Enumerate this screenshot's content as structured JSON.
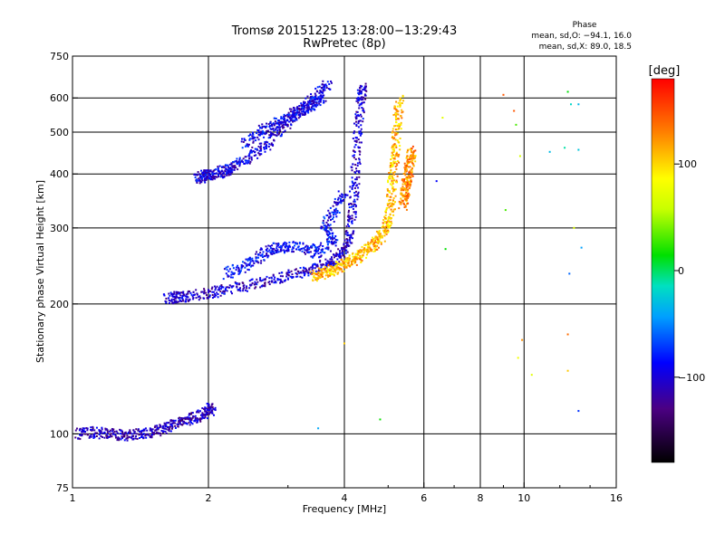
{
  "chart_data": {
    "type": "scatter",
    "title": "Tromsø 20151225 13:28:00−13:29:43",
    "subtitle": "RwPretec (8p)",
    "xlabel": "Frequency [MHz]",
    "ylabel": "Stationary phase Virtual Height [km]",
    "xscale": "log",
    "yscale": "log",
    "xlim": [
      1,
      16
    ],
    "ylim": [
      75,
      750
    ],
    "x_ticks": [
      1,
      2,
      4,
      6,
      8,
      10,
      16
    ],
    "x_tick_labels": [
      "1",
      "2",
      "4",
      "6",
      "8",
      "10",
      "16"
    ],
    "y_ticks": [
      75,
      100,
      200,
      300,
      400,
      500,
      600,
      750
    ],
    "y_tick_labels": [
      "75",
      "100",
      "200",
      "300",
      "400",
      "500",
      "600",
      "750"
    ],
    "x_gridlines": [
      2,
      4,
      6,
      8,
      10
    ],
    "y_gridlines": [
      100,
      200,
      300,
      400,
      500,
      600
    ],
    "grid": true,
    "colorbar": {
      "label": "[deg]",
      "range": [
        -180,
        180
      ],
      "ticks": [
        -100,
        0,
        100
      ],
      "tick_labels": [
        "−100",
        "0",
        "100"
      ]
    },
    "phase_stats": {
      "heading": "Phase",
      "line_o": "mean, sd,O: −94.1, 16.0",
      "line_x": "mean, sd,X:  89.0, 18.5"
    },
    "traces": [
      {
        "id": "e_layer",
        "phase": -110,
        "points": [
          [
            1.02,
            100
          ],
          [
            1.1,
            101
          ],
          [
            1.2,
            100
          ],
          [
            1.3,
            99
          ],
          [
            1.4,
            100
          ],
          [
            1.5,
            101
          ],
          [
            1.6,
            103
          ],
          [
            1.7,
            106
          ],
          [
            1.8,
            108
          ],
          [
            1.9,
            110
          ],
          [
            2.0,
            113
          ],
          [
            2.05,
            115
          ]
        ]
      },
      {
        "id": "f_low_ox",
        "phase": -105,
        "points": [
          [
            1.62,
            206
          ],
          [
            1.7,
            207
          ],
          [
            1.8,
            208
          ],
          [
            2.0,
            212
          ],
          [
            2.2,
            216
          ],
          [
            2.5,
            222
          ],
          [
            2.8,
            228
          ],
          [
            3.1,
            234
          ],
          [
            3.4,
            240
          ],
          [
            3.7,
            248
          ],
          [
            3.9,
            258
          ],
          [
            4.05,
            275
          ],
          [
            4.15,
            310
          ],
          [
            4.2,
            360
          ],
          [
            4.25,
            430
          ],
          [
            4.3,
            520
          ],
          [
            4.35,
            600
          ],
          [
            4.4,
            640
          ]
        ]
      },
      {
        "id": "f_lower_scatter",
        "phase": -90,
        "points": [
          [
            2.2,
            235
          ],
          [
            2.4,
            245
          ],
          [
            2.6,
            258
          ],
          [
            2.8,
            268
          ],
          [
            3.0,
            272
          ],
          [
            3.3,
            270
          ],
          [
            3.5,
            262
          ],
          [
            3.8,
            280
          ],
          [
            3.6,
            300
          ],
          [
            3.8,
            330
          ],
          [
            4.0,
            360
          ]
        ]
      },
      {
        "id": "f_x_mode",
        "phase": 110,
        "points": [
          [
            3.4,
            232
          ],
          [
            3.6,
            236
          ],
          [
            3.8,
            240
          ],
          [
            4.0,
            246
          ],
          [
            4.2,
            254
          ],
          [
            4.4,
            262
          ],
          [
            4.6,
            272
          ],
          [
            4.8,
            285
          ],
          [
            4.95,
            300
          ],
          [
            5.05,
            330
          ],
          [
            5.1,
            370
          ],
          [
            5.15,
            420
          ],
          [
            5.2,
            470
          ],
          [
            5.25,
            540
          ],
          [
            5.3,
            600
          ]
        ]
      },
      {
        "id": "f_x_high",
        "phase": 125,
        "points": [
          [
            5.4,
            340
          ],
          [
            5.45,
            360
          ],
          [
            5.5,
            380
          ],
          [
            5.55,
            400
          ],
          [
            5.6,
            430
          ],
          [
            5.65,
            460
          ]
        ]
      },
      {
        "id": "upper_branch",
        "phase": -100,
        "points": [
          [
            1.9,
            390
          ],
          [
            1.95,
            395
          ],
          [
            2.0,
            398
          ],
          [
            2.1,
            402
          ],
          [
            2.2,
            410
          ],
          [
            2.3,
            420
          ],
          [
            2.5,
            440
          ],
          [
            2.7,
            470
          ],
          [
            2.9,
            510
          ],
          [
            3.1,
            550
          ],
          [
            3.3,
            580
          ],
          [
            3.5,
            610
          ],
          [
            3.7,
            650
          ]
        ]
      },
      {
        "id": "upper_band",
        "phase": -95,
        "points": [
          [
            2.4,
            470
          ],
          [
            2.6,
            500
          ],
          [
            2.8,
            520
          ],
          [
            3.0,
            540
          ],
          [
            3.2,
            560
          ],
          [
            3.4,
            580
          ],
          [
            3.6,
            600
          ]
        ]
      },
      {
        "id": "stray",
        "phase": 40,
        "points": [
          [
            6.6,
            540
          ],
          [
            9.0,
            610
          ],
          [
            9.5,
            560
          ],
          [
            9.6,
            520
          ],
          [
            12.5,
            620
          ],
          [
            12.7,
            580
          ],
          [
            13.2,
            580
          ],
          [
            12.3,
            460
          ],
          [
            13.2,
            455
          ],
          [
            11.4,
            450
          ],
          [
            6.4,
            385
          ],
          [
            9.8,
            440
          ],
          [
            9.1,
            330
          ],
          [
            12.9,
            300
          ],
          [
            6.7,
            268
          ],
          [
            13.4,
            270
          ],
          [
            12.6,
            235
          ],
          [
            9.9,
            165
          ],
          [
            12.5,
            170
          ],
          [
            9.7,
            150
          ],
          [
            12.5,
            140
          ],
          [
            10.4,
            137
          ],
          [
            13.2,
            113
          ],
          [
            4.8,
            108
          ],
          [
            3.5,
            103
          ],
          [
            4.0,
            162
          ]
        ]
      }
    ]
  }
}
